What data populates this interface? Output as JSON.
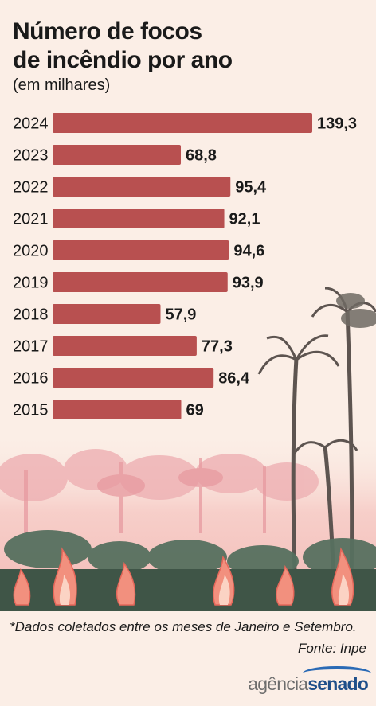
{
  "title_lines": [
    "Número de focos",
    "de incêndio por ano"
  ],
  "subtitle": "(em milhares)",
  "footnote": "*Dados coletados entre os meses de Janeiro e Setembro.",
  "source": "Fonte: Inpe",
  "logo": {
    "part1": "agência",
    "part2": "senado"
  },
  "colors": {
    "bar": "#b85050",
    "background": "#fbeee6",
    "text": "#1a1a1a"
  },
  "chart_data": {
    "type": "bar",
    "orientation": "horizontal",
    "categories": [
      "2024",
      "2023",
      "2022",
      "2021",
      "2020",
      "2019",
      "2018",
      "2017",
      "2016",
      "2015"
    ],
    "values": [
      139.3,
      68.8,
      95.4,
      92.1,
      94.6,
      93.9,
      57.9,
      77.3,
      86.4,
      69
    ],
    "value_labels": [
      "139,3",
      "68,8",
      "95,4",
      "92,1",
      "94,6",
      "93,9",
      "57,9",
      "77,3",
      "86,4",
      "69"
    ],
    "title": "Número de focos de incêndio por ano",
    "xlabel": "",
    "ylabel": "",
    "units": "(em milhares)",
    "xlim": [
      0,
      139.3
    ],
    "grid": false,
    "legend": "none"
  }
}
